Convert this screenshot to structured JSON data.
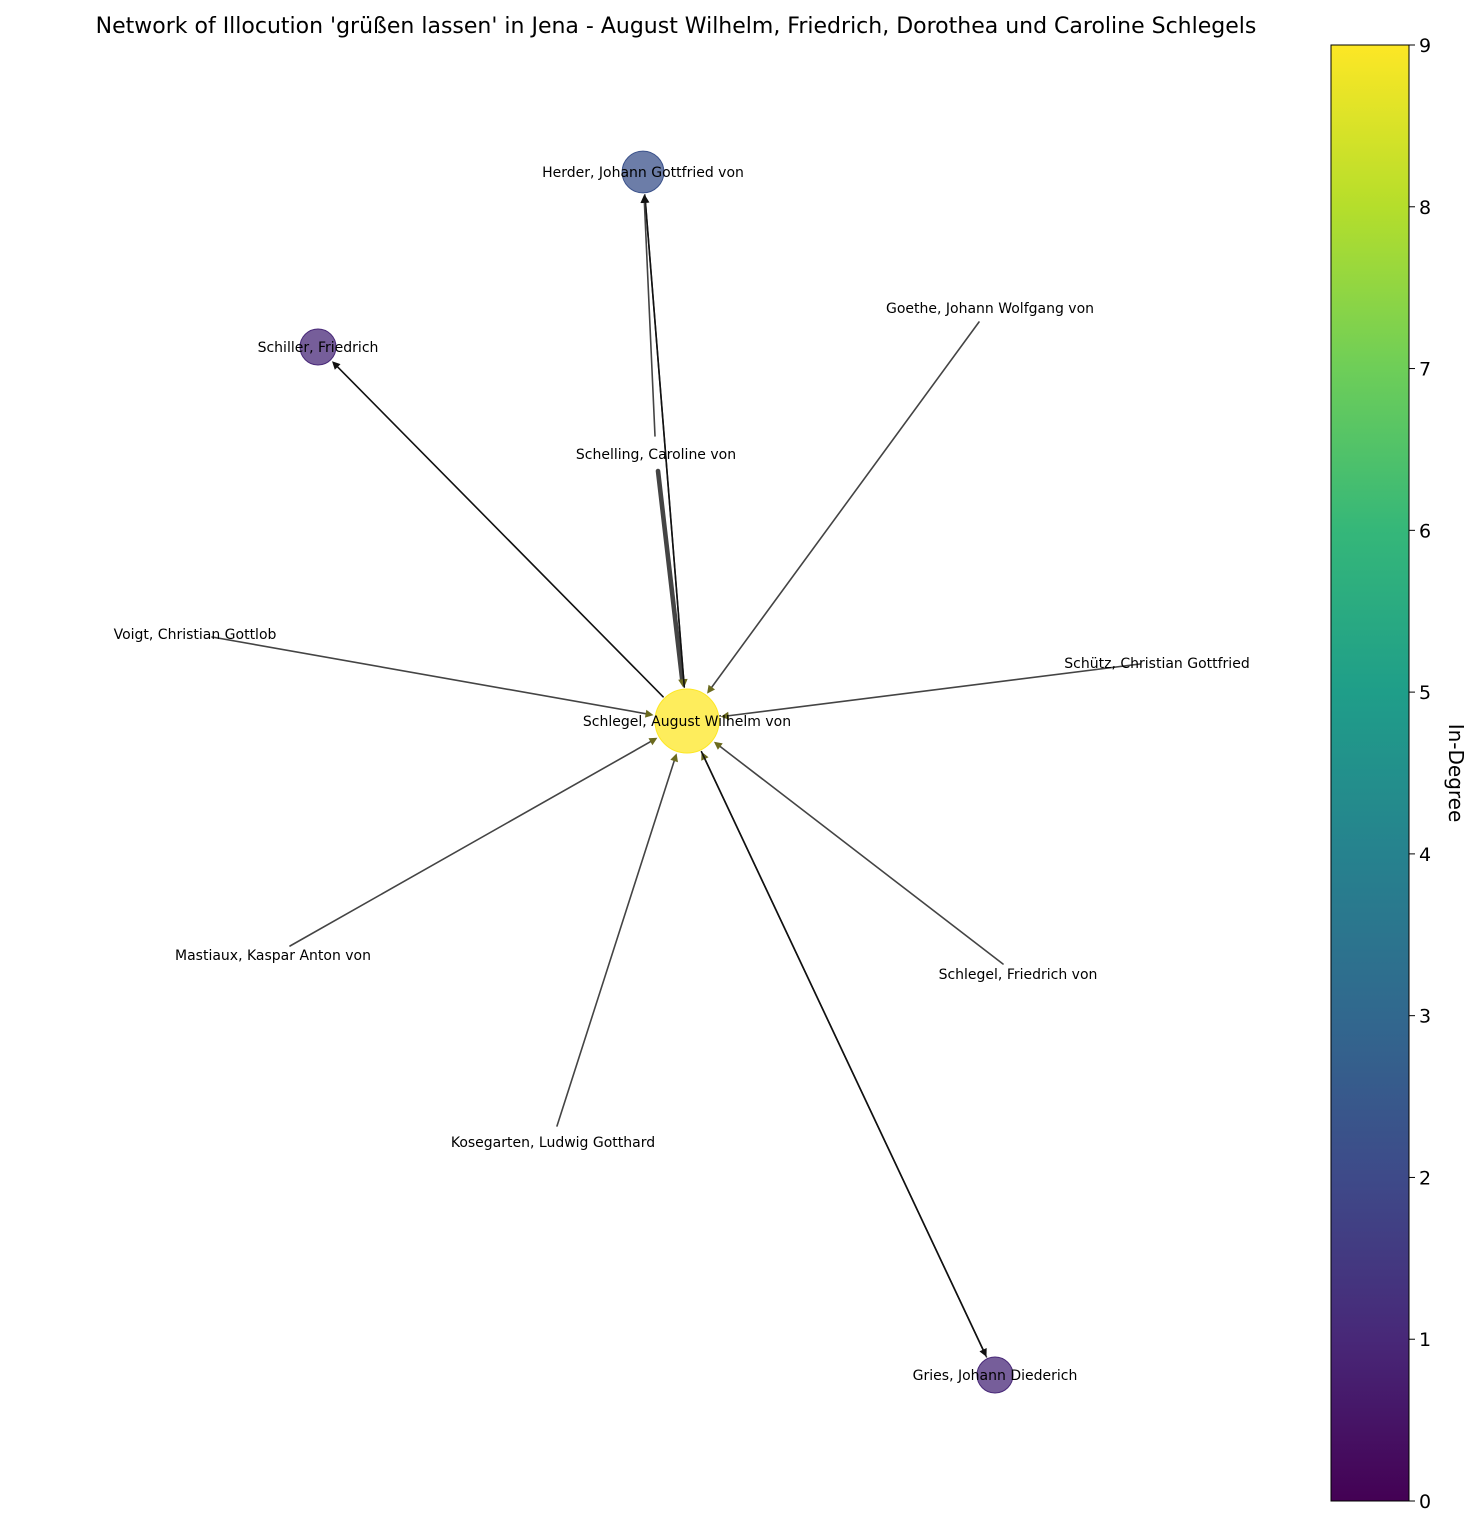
{
  "title": "Network of Illocution 'grüßen lassen' in Jena - August Wilhelm, Friedrich, Dorothea und Caroline Schlegels",
  "colorbar": {
    "label": "In-Degree",
    "range": [
      0,
      9
    ],
    "ticks": [
      "0",
      "1",
      "2",
      "3",
      "4",
      "5",
      "6",
      "7",
      "8",
      "9"
    ]
  },
  "nodes": [
    {
      "id": "schlegel_aw",
      "label": "Schlegel, August Wilhelm von",
      "in_degree": 9,
      "color": "#fde725"
    },
    {
      "id": "herder",
      "label": "Herder, Johann Gottfried von",
      "in_degree": 2,
      "color": "#3b528b"
    },
    {
      "id": "schiller",
      "label": "Schiller, Friedrich",
      "in_degree": 1,
      "color": "#482878"
    },
    {
      "id": "gries",
      "label": "Gries, Johann Diederich",
      "in_degree": 1,
      "color": "#482878"
    },
    {
      "id": "goethe",
      "label": "Goethe, Johann Wolfgang von",
      "in_degree": 0,
      "color": "#440154"
    },
    {
      "id": "schelling",
      "label": "Schelling, Caroline von",
      "in_degree": 0,
      "color": "#440154"
    },
    {
      "id": "voigt",
      "label": "Voigt, Christian Gottlob",
      "in_degree": 0,
      "color": "#440154"
    },
    {
      "id": "schuetz",
      "label": "Schütz, Christian Gottfried",
      "in_degree": 0,
      "color": "#440154"
    },
    {
      "id": "mastiaux",
      "label": "Mastiaux, Kaspar Anton von",
      "in_degree": 0,
      "color": "#440154"
    },
    {
      "id": "schlegel_f",
      "label": "Schlegel, Friedrich von",
      "in_degree": 0,
      "color": "#440154"
    },
    {
      "id": "kosegarten",
      "label": "Kosegarten, Ludwig Gotthard",
      "in_degree": 0,
      "color": "#440154"
    }
  ],
  "edges": [
    {
      "source": "herder",
      "target": "schlegel_aw",
      "weight": 1
    },
    {
      "source": "goethe",
      "target": "schlegel_aw",
      "weight": 1
    },
    {
      "source": "schelling",
      "target": "schlegel_aw",
      "weight": 3
    },
    {
      "source": "voigt",
      "target": "schlegel_aw",
      "weight": 1
    },
    {
      "source": "schuetz",
      "target": "schlegel_aw",
      "weight": 1
    },
    {
      "source": "mastiaux",
      "target": "schlegel_aw",
      "weight": 1
    },
    {
      "source": "schlegel_f",
      "target": "schlegel_aw",
      "weight": 1
    },
    {
      "source": "kosegarten",
      "target": "schlegel_aw",
      "weight": 1
    },
    {
      "source": "gries",
      "target": "schlegel_aw",
      "weight": 1
    },
    {
      "source": "schlegel_aw",
      "target": "herder",
      "weight": 1
    },
    {
      "source": "schelling",
      "target": "herder",
      "weight": 1
    },
    {
      "source": "schlegel_aw",
      "target": "schiller",
      "weight": 1
    },
    {
      "source": "schlegel_aw",
      "target": "gries",
      "weight": 1
    }
  ]
}
